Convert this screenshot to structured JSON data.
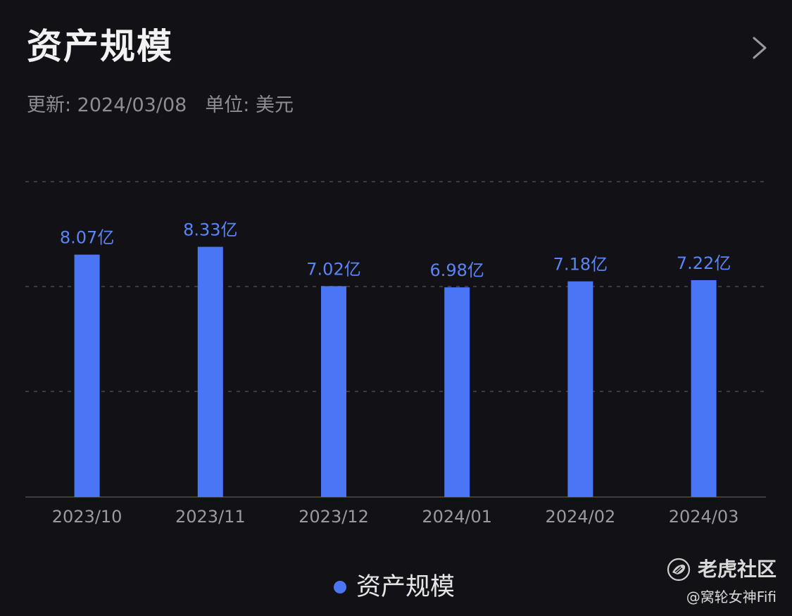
{
  "header": {
    "title": "资产规模",
    "updated": "更新: 2024/03/08",
    "unit": "单位: 美元"
  },
  "colors": {
    "bar": "#4a76f5",
    "value_label": "#5b84f7",
    "tick_label": "#9a9aa0",
    "grid": "#3a3a40",
    "baseline": "#3c3c42"
  },
  "icons": {
    "detail": "chevron-right-icon",
    "watermark_logo": "tiger-logo-icon"
  },
  "legend": {
    "label": "资产规模"
  },
  "watermark": {
    "brand": "老虎社区",
    "user": "@窝轮女神Fifi"
  },
  "chart_data": {
    "type": "bar",
    "title": "资产规模",
    "categories": [
      "2023/10",
      "2023/11",
      "2023/12",
      "2024/01",
      "2024/02",
      "2024/03"
    ],
    "series": [
      {
        "name": "资产规模",
        "values": [
          8.07,
          8.33,
          7.02,
          6.98,
          7.18,
          7.22
        ],
        "labels": [
          "8.07亿",
          "8.33亿",
          "7.02亿",
          "6.98亿",
          "7.18亿",
          "7.22亿"
        ]
      }
    ],
    "unit_suffix": "亿",
    "ylim": [
      0,
      10.5
    ],
    "grid": true,
    "grid_style": "dashed",
    "legend_position": "bottom-center"
  }
}
